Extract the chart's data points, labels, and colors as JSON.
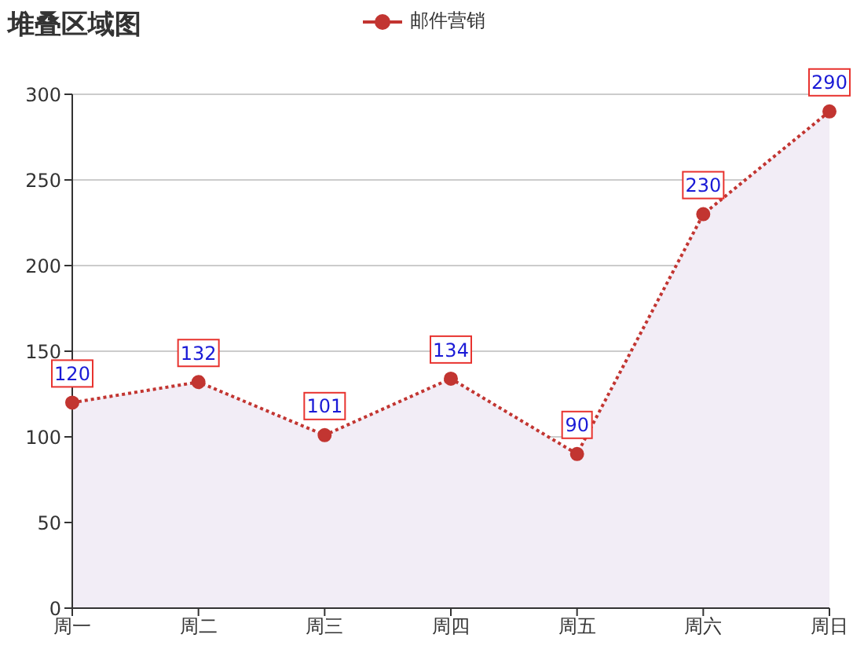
{
  "chart_data": {
    "type": "area",
    "title": "堆叠区域图",
    "categories": [
      "周一",
      "周二",
      "周三",
      "周四",
      "周五",
      "周六",
      "周日"
    ],
    "series": [
      {
        "name": "邮件营销",
        "color": "#c23531",
        "values": [
          120,
          132,
          101,
          134,
          90,
          230,
          290
        ]
      }
    ],
    "ylim": [
      0,
      300
    ],
    "yticks": [
      0,
      50,
      100,
      150,
      200,
      250,
      300
    ],
    "grid": "y",
    "legend": "top",
    "marker": "circle",
    "line_style": "dotted",
    "data_labels": true
  }
}
